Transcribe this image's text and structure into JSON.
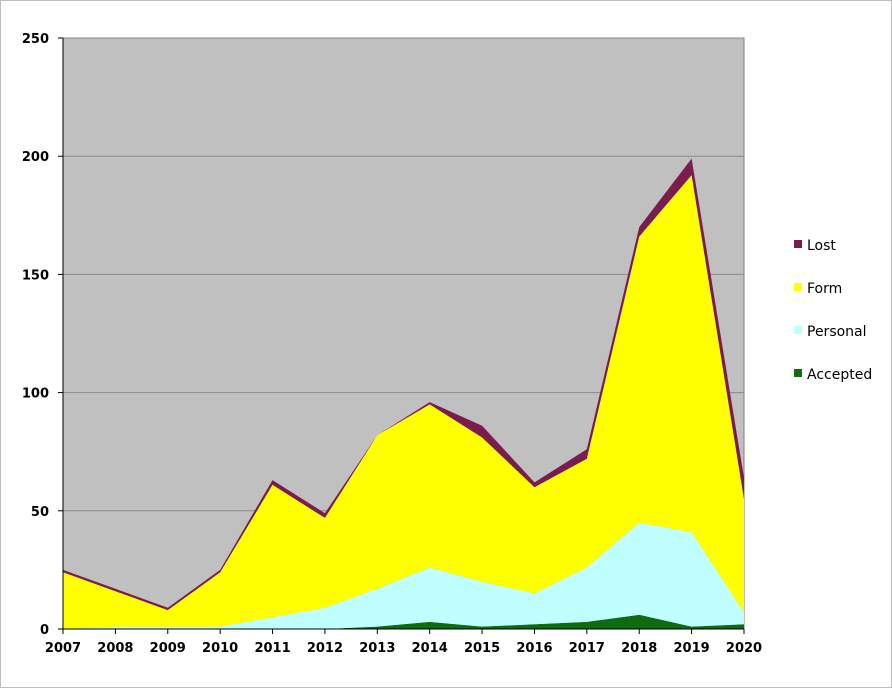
{
  "chart_data": {
    "type": "area",
    "stacked": true,
    "categories": [
      "2007",
      "2008",
      "2009",
      "2010",
      "2011",
      "2012",
      "2013",
      "2014",
      "2015",
      "2016",
      "2017",
      "2018",
      "2019",
      "2020"
    ],
    "ylim": [
      0,
      250
    ],
    "yticks": [
      0,
      50,
      100,
      150,
      200,
      250
    ],
    "grid": true,
    "legend_position": "right",
    "plot_background": "#c0c0c0",
    "series": [
      {
        "name": "Accepted",
        "color": "#0f6b0f",
        "values": [
          0,
          0,
          0,
          0,
          0,
          0,
          1,
          3,
          1,
          2,
          3,
          6,
          1,
          2
        ]
      },
      {
        "name": "Personal",
        "color": "#c0ffff",
        "values": [
          0,
          1,
          1,
          1,
          5,
          9,
          16,
          23,
          19,
          13,
          23,
          39,
          40,
          5
        ]
      },
      {
        "name": "Form",
        "color": "#ffff00",
        "values": [
          24,
          15,
          7,
          23,
          56,
          38,
          65,
          69,
          61,
          45,
          46,
          121,
          151,
          48
        ]
      },
      {
        "name": "Lost",
        "color": "#7b1c4f",
        "values": [
          1,
          1,
          1,
          1,
          2,
          2,
          0,
          1,
          5,
          2,
          4,
          4,
          7,
          9
        ]
      }
    ]
  }
}
